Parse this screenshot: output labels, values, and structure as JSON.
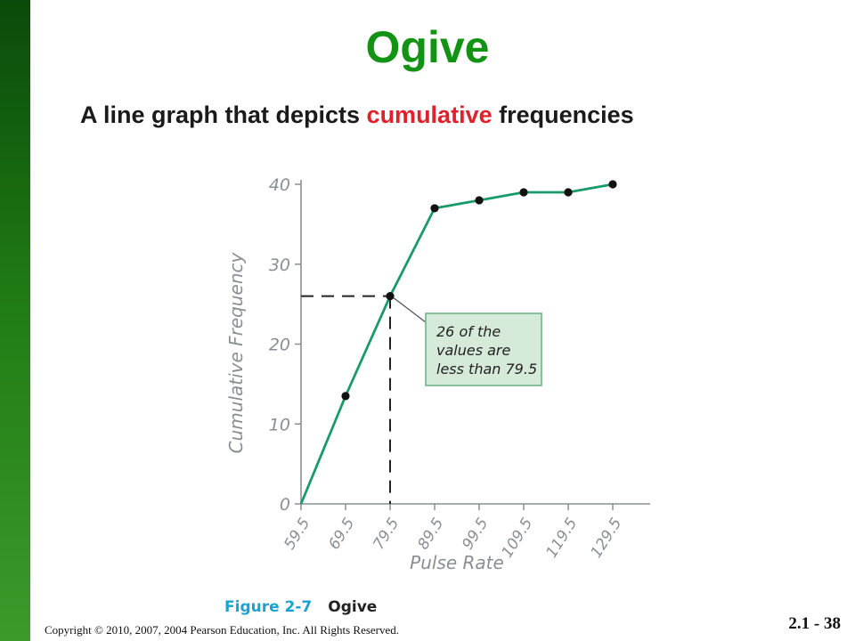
{
  "slide": {
    "title": "Ogive",
    "subtitle_prefix": "A line graph that depicts ",
    "subtitle_highlight": "cumulative",
    "subtitle_suffix": " frequencies",
    "figure_label": "Figure 2-7",
    "figure_title": "Ogive",
    "copyright": "Copyright © 2010, 2007, 2004 Pearson Education, Inc. All Rights Reserved.",
    "slide_number": "2.1 - 38"
  },
  "colors": {
    "sidebar": "#1f7a14",
    "title": "#139313",
    "highlight": "#e0202a",
    "line": "#1a9a6a",
    "callout_fill": "#d5ead8",
    "callout_border": "#6fb389",
    "figure_label": "#1aa3d2"
  },
  "chart_data": {
    "type": "line",
    "xlabel": "Pulse Rate",
    "ylabel": "Cumulative Frequency",
    "x": [
      59.5,
      69.5,
      79.5,
      89.5,
      99.5,
      109.5,
      119.5,
      129.5
    ],
    "x_ticks": [
      "59.5",
      "69.5",
      "79.5",
      "89.5",
      "99.5",
      "109.5",
      "119.5",
      "129.5"
    ],
    "y_ticks": [
      "0",
      "10",
      "20",
      "30",
      "40"
    ],
    "ylim": [
      0,
      40
    ],
    "series": [
      {
        "values": [
          0,
          13.5,
          26,
          37,
          38,
          39,
          39,
          40
        ]
      }
    ],
    "reference": {
      "x": 79.5,
      "y": 26
    },
    "annotation": [
      "26 of the",
      "values are",
      "less than 79.5"
    ],
    "grid": false
  }
}
